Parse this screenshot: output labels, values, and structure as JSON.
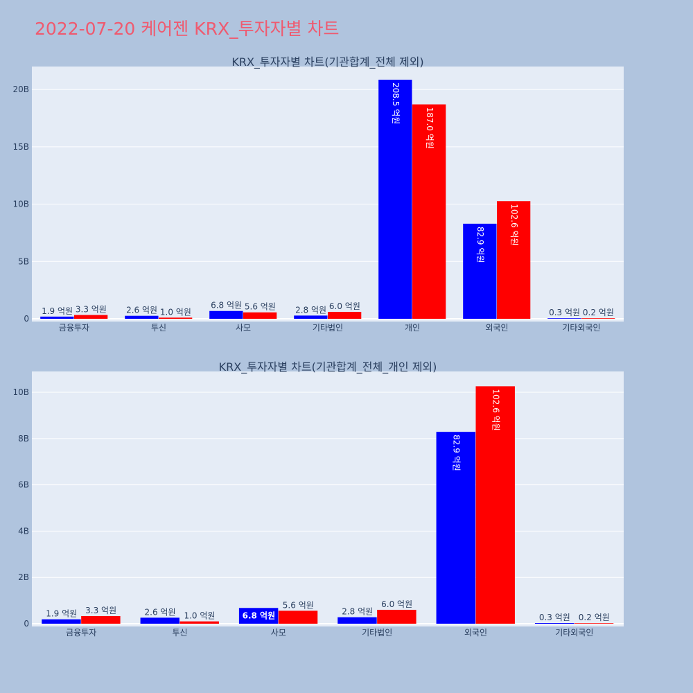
{
  "title": "2022-07-20 케어젠 KRX_투자자별 차트",
  "colors": {
    "page_bg": "#b0c4de",
    "plot_bg": "#e5ecf6",
    "title": "#ef5a6f",
    "text": "#2a3f5f",
    "buy": "#0000ff",
    "sell": "#ff0000"
  },
  "chart_data": [
    {
      "type": "bar",
      "title": "KRX_투자자별 차트(기관합계_전체 제외)",
      "categories": [
        "금융투자",
        "투신",
        "사모",
        "기타법인",
        "개인",
        "외국인",
        "기타외국인"
      ],
      "series": [
        {
          "color": "#0000ff",
          "values": [
            190000000,
            260000000,
            680000000,
            280000000,
            20850000000,
            8290000000,
            30000000
          ],
          "labels": [
            "1.9 억원",
            "2.6 억원",
            "6.8 억원",
            "2.8 억원",
            "208.5 억원",
            "82.9 억원",
            "0.3 억원"
          ]
        },
        {
          "color": "#ff0000",
          "values": [
            330000000,
            100000000,
            560000000,
            600000000,
            18700000000,
            10260000000,
            20000000
          ],
          "labels": [
            "3.3 억원",
            "1.0 억원",
            "5.6 억원",
            "6.0 억원",
            "187.0 억원",
            "102.6 억원",
            "0.2 억원"
          ]
        }
      ],
      "yticks": [
        0,
        5000000000,
        10000000000,
        15000000000,
        20000000000
      ],
      "ytick_labels": [
        "0",
        "5B",
        "10B",
        "15B",
        "20B"
      ],
      "ylim": [
        0,
        22000000000
      ],
      "grid": true,
      "barmode": "group",
      "legend": "none"
    },
    {
      "type": "bar",
      "title": "KRX_투자자별 차트(기관합계_전체_개인 제외)",
      "categories": [
        "금융투자",
        "투신",
        "사모",
        "기타법인",
        "외국인",
        "기타외국인"
      ],
      "series": [
        {
          "color": "#0000ff",
          "values": [
            190000000,
            260000000,
            680000000,
            280000000,
            8290000000,
            30000000
          ],
          "labels": [
            "1.9 억원",
            "2.6 억원",
            "6.8 억원",
            "2.8 억원",
            "82.9 억원",
            "0.3 억원"
          ]
        },
        {
          "color": "#ff0000",
          "values": [
            330000000,
            100000000,
            560000000,
            600000000,
            10260000000,
            20000000
          ],
          "labels": [
            "3.3 억원",
            "1.0 억원",
            "5.6 억원",
            "6.0 억원",
            "102.6 억원",
            "0.2 억원"
          ]
        }
      ],
      "yticks": [
        0,
        2000000000,
        4000000000,
        6000000000,
        8000000000,
        10000000000
      ],
      "ytick_labels": [
        "0",
        "2B",
        "4B",
        "6B",
        "8B",
        "10B"
      ],
      "ylim": [
        0,
        10900000000
      ],
      "grid": true,
      "barmode": "group",
      "legend": "none"
    }
  ]
}
